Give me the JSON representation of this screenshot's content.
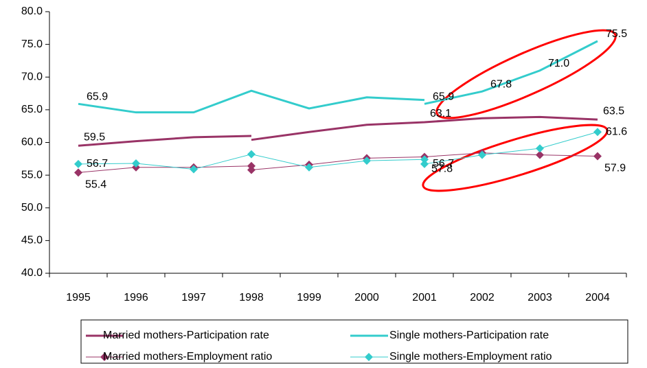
{
  "chart_data": {
    "type": "line",
    "xlim": [
      1994.5,
      2004.5
    ],
    "xticks": [
      1995,
      1996,
      1997,
      1998,
      1999,
      2000,
      2001,
      2002,
      2003,
      2004
    ],
    "ylim": [
      40,
      80
    ],
    "yticks": [
      {
        "value": 40,
        "label": "40.0"
      },
      {
        "value": 45,
        "label": "45.0"
      },
      {
        "value": 50,
        "label": "50.0"
      },
      {
        "value": 55,
        "label": "55.0"
      },
      {
        "value": 60,
        "label": "60.0"
      },
      {
        "value": 65,
        "label": "65.0"
      },
      {
        "value": 70,
        "label": "70.0"
      },
      {
        "value": 75,
        "label": "75.0"
      },
      {
        "value": 80,
        "label": "80.0"
      }
    ],
    "grid": false,
    "legend": "bottom",
    "series": [
      {
        "name": "Married mothers-Participation rate",
        "color": "#993366",
        "width": 3,
        "marker": "none",
        "x": [
          1995,
          1996,
          1997,
          1998,
          null,
          1998,
          1999,
          2000,
          2001,
          2002,
          2003,
          2004
        ],
        "values": [
          59.5,
          60.2,
          60.8,
          61.0,
          null,
          60.4,
          61.6,
          62.7,
          63.1,
          63.7,
          63.9,
          63.5
        ],
        "value_labels": [
          "59.5",
          null,
          null,
          null,
          null,
          null,
          null,
          null,
          "63.1",
          null,
          null,
          "63.5"
        ]
      },
      {
        "name": "Single mothers-Participation rate",
        "color": "#33CCCC",
        "width": 3,
        "marker": "none",
        "x": [
          1995,
          1996,
          1997,
          1998,
          1999,
          2000,
          2001,
          null,
          2001,
          2002,
          2003,
          2004
        ],
        "values": [
          65.9,
          64.6,
          64.6,
          67.9,
          65.2,
          66.9,
          66.5,
          null,
          65.9,
          67.8,
          71.0,
          75.5
        ],
        "value_labels": [
          "65.9",
          null,
          null,
          null,
          null,
          null,
          null,
          null,
          "65.9",
          "67.8",
          "71.0",
          "75.5"
        ]
      },
      {
        "name": "Married mothers-Employment ratio",
        "color": "#993366",
        "width": 1,
        "marker": "diamond",
        "x": [
          1995,
          1996,
          1997,
          1998,
          null,
          1998,
          1999,
          2000,
          2001,
          2002,
          2003,
          2004
        ],
        "values": [
          55.4,
          56.2,
          56.2,
          56.4,
          null,
          55.8,
          56.6,
          57.6,
          57.8,
          58.4,
          58.1,
          57.9
        ],
        "value_labels": [
          "55.4",
          null,
          null,
          null,
          null,
          null,
          null,
          null,
          "57.8",
          null,
          null,
          "57.9"
        ]
      },
      {
        "name": "Single mothers-Employment ratio",
        "color": "#33CCCC",
        "width": 1,
        "marker": "diamond",
        "x": [
          1995,
          1996,
          1997,
          1998,
          1999,
          2000,
          2001,
          null,
          2001,
          2002,
          2003,
          2004
        ],
        "values": [
          56.7,
          56.8,
          55.9,
          58.2,
          56.2,
          57.2,
          57.4,
          null,
          56.7,
          58.1,
          59.1,
          61.6
        ],
        "value_labels": [
          "56.7",
          null,
          null,
          null,
          null,
          null,
          null,
          null,
          "56.7",
          null,
          null,
          "61.6"
        ]
      }
    ]
  }
}
